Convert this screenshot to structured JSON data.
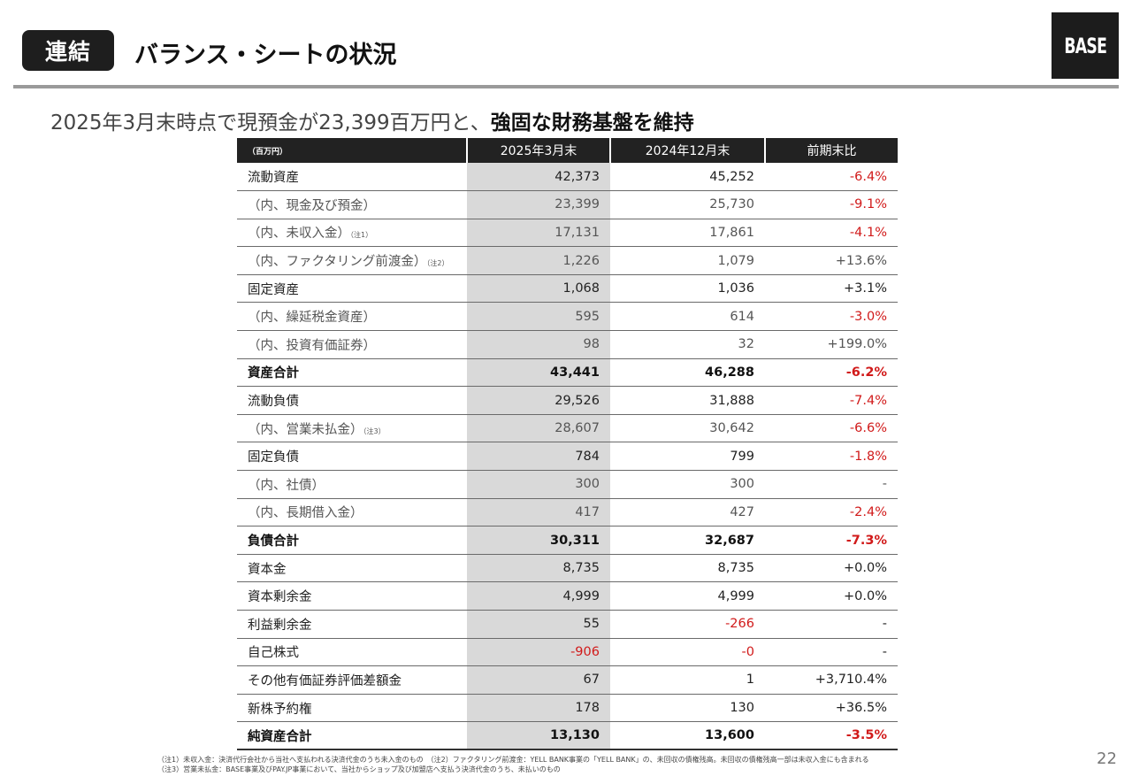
{
  "header": {
    "tag": "連結",
    "title": "バランス・シートの状況",
    "logo": "BASE"
  },
  "subtitle": {
    "plain": "2025年3月末時点で現預金が23,399百万円と、",
    "bold": "強固な財務基盤を維持"
  },
  "table": {
    "unit": "（百万円）",
    "columns": [
      "2025年3月末",
      "2024年12月末",
      "前期末比"
    ],
    "rows": [
      {
        "label": "流動資産",
        "note": "",
        "v1": "42,373",
        "v2": "45,252",
        "chg": "-6.4%",
        "style": "main",
        "neg1": false,
        "neg2": false,
        "negc": true
      },
      {
        "label": "（内、現金及び預金）",
        "note": "",
        "v1": "23,399",
        "v2": "25,730",
        "chg": "-9.1%",
        "style": "sub",
        "neg1": false,
        "neg2": false,
        "negc": true
      },
      {
        "label": "（内、未収入金）",
        "note": "（注1）",
        "v1": "17,131",
        "v2": "17,861",
        "chg": "-4.1%",
        "style": "sub",
        "neg1": false,
        "neg2": false,
        "negc": true
      },
      {
        "label": "（内、ファクタリング前渡金）",
        "note": "（注2）",
        "v1": "1,226",
        "v2": "1,079",
        "chg": "+13.6%",
        "style": "sub",
        "neg1": false,
        "neg2": false,
        "negc": false
      },
      {
        "label": "固定資産",
        "note": "",
        "v1": "1,068",
        "v2": "1,036",
        "chg": "+3.1%",
        "style": "main",
        "neg1": false,
        "neg2": false,
        "negc": false
      },
      {
        "label": "（内、繰延税金資産）",
        "note": "",
        "v1": "595",
        "v2": "614",
        "chg": "-3.0%",
        "style": "sub",
        "neg1": false,
        "neg2": false,
        "negc": true
      },
      {
        "label": "（内、投資有価証券）",
        "note": "",
        "v1": "98",
        "v2": "32",
        "chg": "+199.0%",
        "style": "sub",
        "neg1": false,
        "neg2": false,
        "negc": false
      },
      {
        "label": "資産合計",
        "note": "",
        "v1": "43,441",
        "v2": "46,288",
        "chg": "-6.2%",
        "style": "bold",
        "neg1": false,
        "neg2": false,
        "negc": true
      },
      {
        "label": "流動負債",
        "note": "",
        "v1": "29,526",
        "v2": "31,888",
        "chg": "-7.4%",
        "style": "main",
        "neg1": false,
        "neg2": false,
        "negc": true
      },
      {
        "label": "（内、営業未払金）",
        "note": "（注3）",
        "v1": "28,607",
        "v2": "30,642",
        "chg": "-6.6%",
        "style": "sub",
        "neg1": false,
        "neg2": false,
        "negc": true
      },
      {
        "label": "固定負債",
        "note": "",
        "v1": "784",
        "v2": "799",
        "chg": "-1.8%",
        "style": "main",
        "neg1": false,
        "neg2": false,
        "negc": true
      },
      {
        "label": "（内、社債）",
        "note": "",
        "v1": "300",
        "v2": "300",
        "chg": "-",
        "style": "sub",
        "neg1": false,
        "neg2": false,
        "negc": false
      },
      {
        "label": "（内、長期借入金）",
        "note": "",
        "v1": "417",
        "v2": "427",
        "chg": "-2.4%",
        "style": "sub",
        "neg1": false,
        "neg2": false,
        "negc": true
      },
      {
        "label": "負債合計",
        "note": "",
        "v1": "30,311",
        "v2": "32,687",
        "chg": "-7.3%",
        "style": "bold",
        "neg1": false,
        "neg2": false,
        "negc": true
      },
      {
        "label": "資本金",
        "note": "",
        "v1": "8,735",
        "v2": "8,735",
        "chg": "+0.0%",
        "style": "main",
        "neg1": false,
        "neg2": false,
        "negc": false
      },
      {
        "label": "資本剰余金",
        "note": "",
        "v1": "4,999",
        "v2": "4,999",
        "chg": "+0.0%",
        "style": "main",
        "neg1": false,
        "neg2": false,
        "negc": false
      },
      {
        "label": "利益剰余金",
        "note": "",
        "v1": "55",
        "v2": "-266",
        "chg": "-",
        "style": "main",
        "neg1": false,
        "neg2": true,
        "negc": false
      },
      {
        "label": "自己株式",
        "note": "",
        "v1": "-906",
        "v2": "-0",
        "chg": "-",
        "style": "main",
        "neg1": true,
        "neg2": true,
        "negc": false
      },
      {
        "label": "その他有価証券評価差額金",
        "note": "",
        "v1": "67",
        "v2": "1",
        "chg": "+3,710.4%",
        "style": "main",
        "neg1": false,
        "neg2": false,
        "negc": false
      },
      {
        "label": "新株予約権",
        "note": "",
        "v1": "178",
        "v2": "130",
        "chg": "+36.5%",
        "style": "main",
        "neg1": false,
        "neg2": false,
        "negc": false
      },
      {
        "label": "純資産合計",
        "note": "",
        "v1": "13,130",
        "v2": "13,600",
        "chg": "-3.5%",
        "style": "bold",
        "neg1": false,
        "neg2": false,
        "negc": true
      }
    ]
  },
  "footnotes": [
    "（注1）未収入金：決済代行会社から当社へ支払われる決済代金のうち未入金のもの　（注2）ファクタリング前渡金：YELL BANK事業の「YELL BANK」の、未回収の債権残高。未回収の債権残高一部は未収入金にも含まれる",
    "（注3）営業未払金：BASE事業及びPAY.JP事業において、当社からショップ及び加盟店へ支払う決済代金のうち、未払いのもの"
  ],
  "page_number": "22",
  "colors": {
    "dark": "#222222",
    "shade": "#d9d9d9",
    "negative": "#d11a1a",
    "rule": "#9a9a9a"
  }
}
